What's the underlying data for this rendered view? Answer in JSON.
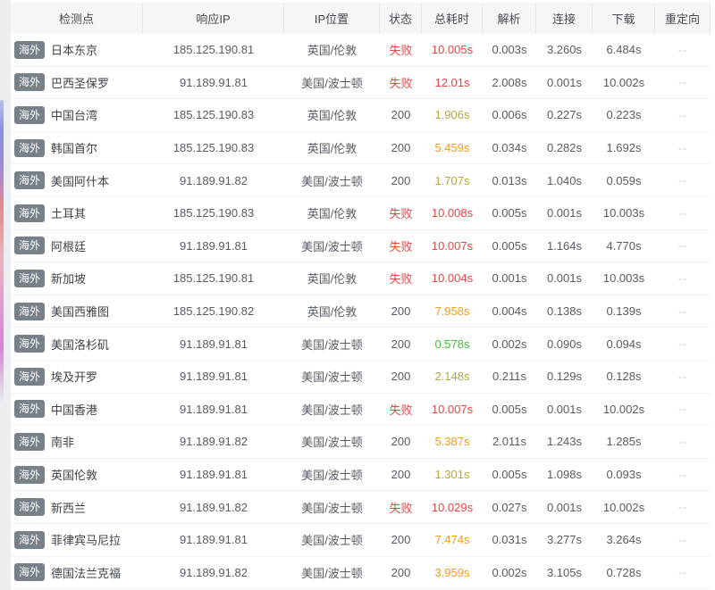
{
  "colors": {
    "red": "#e84545",
    "yellow": "#b5a63e",
    "orange": "#f59a23",
    "green": "#3fbf3f",
    "header_bg": "#f5f6f7",
    "badge_bg": "#78818a",
    "body_text": "#565b62"
  },
  "table": {
    "columns": [
      {
        "key": "node",
        "label": "检测点"
      },
      {
        "key": "ip",
        "label": "响应IP"
      },
      {
        "key": "location",
        "label": "IP位置"
      },
      {
        "key": "status",
        "label": "状态"
      },
      {
        "key": "total",
        "label": "总耗时"
      },
      {
        "key": "resolve",
        "label": "解析"
      },
      {
        "key": "connect",
        "label": "连接"
      },
      {
        "key": "download",
        "label": "下载"
      },
      {
        "key": "redirect",
        "label": "重定向"
      }
    ],
    "rows": [
      {
        "badge": "海外",
        "node": "日本东京",
        "ip": "185.125.190.81",
        "location": "英国/伦敦",
        "status": "失败",
        "status_type": "fail",
        "total": "10.005s",
        "total_color": "red",
        "resolve": "0.003s",
        "connect": "3.260s",
        "download": "6.484s",
        "redirect": "--"
      },
      {
        "badge": "海外",
        "node": "巴西圣保罗",
        "ip": "91.189.91.81",
        "location": "美国/波士顿",
        "status": "失败",
        "status_type": "fail",
        "total": "12.01s",
        "total_color": "red",
        "resolve": "2.008s",
        "connect": "0.001s",
        "download": "10.002s",
        "redirect": "--"
      },
      {
        "badge": "海外",
        "node": "中国台湾",
        "ip": "185.125.190.83",
        "location": "英国/伦敦",
        "status": "200",
        "status_type": "ok",
        "total": "1.906s",
        "total_color": "yellow",
        "resolve": "0.006s",
        "connect": "0.227s",
        "download": "0.223s",
        "redirect": "--"
      },
      {
        "badge": "海外",
        "node": "韩国首尔",
        "ip": "185.125.190.83",
        "location": "英国/伦敦",
        "status": "200",
        "status_type": "ok",
        "total": "5.459s",
        "total_color": "orange",
        "resolve": "0.034s",
        "connect": "0.282s",
        "download": "1.692s",
        "redirect": "--"
      },
      {
        "badge": "海外",
        "node": "美国阿什本",
        "ip": "91.189.91.82",
        "location": "美国/波士顿",
        "status": "200",
        "status_type": "ok",
        "total": "1.707s",
        "total_color": "yellow",
        "resolve": "0.013s",
        "connect": "1.040s",
        "download": "0.059s",
        "redirect": "--"
      },
      {
        "badge": "海外",
        "node": "土耳其",
        "ip": "185.125.190.83",
        "location": "英国/伦敦",
        "status": "失败",
        "status_type": "fail",
        "total": "10.008s",
        "total_color": "red",
        "resolve": "0.005s",
        "connect": "0.001s",
        "download": "10.003s",
        "redirect": "--"
      },
      {
        "badge": "海外",
        "node": "阿根廷",
        "ip": "91.189.91.81",
        "location": "美国/波士顿",
        "status": "失败",
        "status_type": "fail",
        "total": "10.007s",
        "total_color": "red",
        "resolve": "0.005s",
        "connect": "1.164s",
        "download": "4.770s",
        "redirect": "--"
      },
      {
        "badge": "海外",
        "node": "新加坡",
        "ip": "185.125.190.81",
        "location": "英国/伦敦",
        "status": "失败",
        "status_type": "fail",
        "total": "10.004s",
        "total_color": "red",
        "resolve": "0.001s",
        "connect": "0.001s",
        "download": "10.003s",
        "redirect": "--"
      },
      {
        "badge": "海外",
        "node": "美国西雅图",
        "ip": "185.125.190.82",
        "location": "英国/伦敦",
        "status": "200",
        "status_type": "ok",
        "total": "7.958s",
        "total_color": "orange",
        "resolve": "0.004s",
        "connect": "0.138s",
        "download": "0.139s",
        "redirect": "--"
      },
      {
        "badge": "海外",
        "node": "美国洛杉矶",
        "ip": "91.189.91.81",
        "location": "美国/波士顿",
        "status": "200",
        "status_type": "ok",
        "total": "0.578s",
        "total_color": "green",
        "resolve": "0.002s",
        "connect": "0.090s",
        "download": "0.094s",
        "redirect": "--"
      },
      {
        "badge": "海外",
        "node": "埃及开罗",
        "ip": "91.189.91.81",
        "location": "美国/波士顿",
        "status": "200",
        "status_type": "ok",
        "total": "2.148s",
        "total_color": "yellow",
        "resolve": "0.211s",
        "connect": "0.129s",
        "download": "0.128s",
        "redirect": "--"
      },
      {
        "badge": "海外",
        "node": "中国香港",
        "ip": "91.189.91.81",
        "location": "美国/波士顿",
        "status": "失败",
        "status_type": "fail",
        "total": "10.007s",
        "total_color": "red",
        "resolve": "0.005s",
        "connect": "0.001s",
        "download": "10.002s",
        "redirect": "--"
      },
      {
        "badge": "海外",
        "node": "南非",
        "ip": "91.189.91.82",
        "location": "美国/波士顿",
        "status": "200",
        "status_type": "ok",
        "total": "5.387s",
        "total_color": "orange",
        "resolve": "2.011s",
        "connect": "1.243s",
        "download": "1.285s",
        "redirect": "--"
      },
      {
        "badge": "海外",
        "node": "英国伦敦",
        "ip": "91.189.91.81",
        "location": "美国/波士顿",
        "status": "200",
        "status_type": "ok",
        "total": "1.301s",
        "total_color": "yellow",
        "resolve": "0.005s",
        "connect": "1.098s",
        "download": "0.093s",
        "redirect": "--"
      },
      {
        "badge": "海外",
        "node": "新西兰",
        "ip": "91.189.91.82",
        "location": "美国/波士顿",
        "status": "失败",
        "status_type": "fail",
        "total": "10.029s",
        "total_color": "red",
        "resolve": "0.027s",
        "connect": "0.001s",
        "download": "10.002s",
        "redirect": "--"
      },
      {
        "badge": "海外",
        "node": "菲律宾马尼拉",
        "ip": "91.189.91.81",
        "location": "美国/波士顿",
        "status": "200",
        "status_type": "ok",
        "total": "7.474s",
        "total_color": "orange",
        "resolve": "0.031s",
        "connect": "3.277s",
        "download": "3.264s",
        "redirect": "--"
      },
      {
        "badge": "海外",
        "node": "德国法兰克福",
        "ip": "91.189.91.82",
        "location": "美国/波士顿",
        "status": "200",
        "status_type": "ok",
        "total": "3.959s",
        "total_color": "orange",
        "resolve": "0.002s",
        "connect": "3.105s",
        "download": "0.728s",
        "redirect": "--"
      }
    ]
  }
}
